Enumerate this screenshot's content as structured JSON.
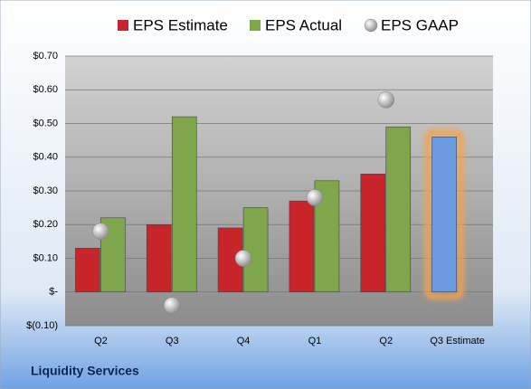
{
  "chart_data": {
    "type": "bar",
    "categories": [
      "Q2",
      "Q3",
      "Q4",
      "Q1",
      "Q2",
      "Q3 Estimate"
    ],
    "series": [
      {
        "name": "EPS Estimate",
        "color": "#c8252a",
        "values": [
          0.13,
          0.2,
          0.19,
          0.27,
          0.35,
          0.46
        ],
        "point_colors": [
          "#c8252a",
          "#c8252a",
          "#c8252a",
          "#c8252a",
          "#c8252a",
          "#6a9be0"
        ]
      },
      {
        "name": "EPS Actual",
        "color": "#7fa64a",
        "values": [
          0.22,
          0.52,
          0.25,
          0.33,
          0.49,
          null
        ]
      },
      {
        "name": "EPS GAAP",
        "color": "#a8a8a8",
        "marker": "circle",
        "values": [
          0.18,
          -0.04,
          0.1,
          0.28,
          0.57,
          null
        ]
      }
    ],
    "highlight": {
      "index": 5,
      "color": "#f5a24a"
    },
    "ylim": [
      -0.1,
      0.7
    ],
    "yticks": [
      {
        "value": -0.1,
        "label": "$(0.10)"
      },
      {
        "value": 0,
        "label": "$-"
      },
      {
        "value": 0.1,
        "label": "$0.10"
      },
      {
        "value": 0.2,
        "label": "$0.20"
      },
      {
        "value": 0.3,
        "label": "$0.30"
      },
      {
        "value": 0.4,
        "label": "$0.40"
      },
      {
        "value": 0.5,
        "label": "$0.50"
      },
      {
        "value": 0.6,
        "label": "$0.60"
      },
      {
        "value": 0.7,
        "label": "$0.70"
      }
    ],
    "grid": true,
    "legend": "top",
    "footer": "Liquidity Services"
  }
}
